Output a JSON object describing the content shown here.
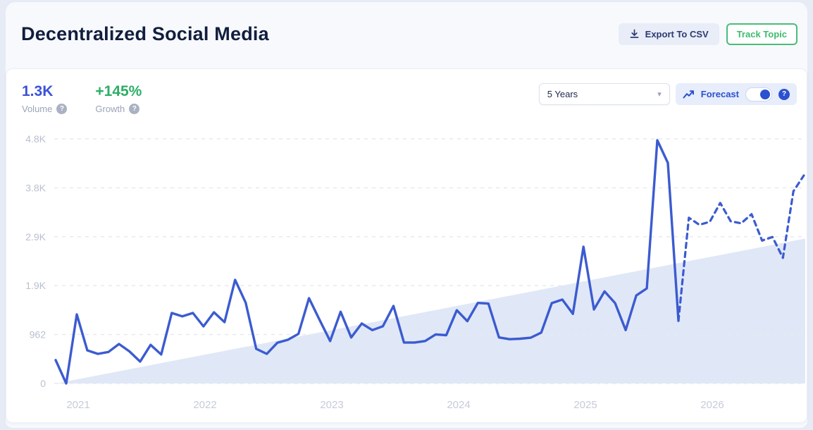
{
  "header": {
    "title": "Decentralized Social Media",
    "export_button": "Export To CSV",
    "track_button": "Track Topic"
  },
  "stats": {
    "volume_value": "1.3K",
    "volume_label": "Volume",
    "growth_value": "+145%",
    "growth_label": "Growth"
  },
  "controls": {
    "range_selected": "5 Years",
    "forecast_label": "Forecast",
    "forecast_toggle_state": "on"
  },
  "icons": {
    "caret": "▾",
    "help": "?"
  },
  "colors": {
    "accent_blue": "#2b50d0",
    "line_blue": "#3c5bd0",
    "green": "#2cae66",
    "trend_fill": "#e0e8f7",
    "grid": "#e5e8f0",
    "y_tick_text": "#b9c0cf",
    "x_tick_text": "#c6cbd9"
  },
  "chart_data": {
    "type": "line",
    "title": "Decentralized Social Media search volume, 5 years with forecast",
    "x_unit": "month",
    "x_start": "2020-11",
    "x_tick_labels": [
      "2021",
      "2022",
      "2023",
      "2024",
      "2025",
      "2026"
    ],
    "y_tick_labels": [
      "0",
      "962",
      "1.9K",
      "2.9K",
      "3.8K",
      "4.8K"
    ],
    "y_tick_values": [
      0,
      962,
      1924,
      2886,
      3848,
      4810
    ],
    "y_max": 4810,
    "grid": "dashed-horizontal",
    "legend": "none",
    "series": [
      {
        "name": "volume",
        "style": "solid",
        "values": [
          460,
          0,
          1358,
          651,
          582,
          620,
          776,
          630,
          430,
          760,
          570,
          1386,
          1320,
          1386,
          1123,
          1400,
          1206,
          2037,
          1590,
          680,
          582,
          800,
          860,
          975,
          1677,
          1250,
          835,
          1410,
          905,
          1180,
          1050,
          1125,
          1525,
          805,
          805,
          835,
          965,
          950,
          1440,
          1225,
          1585,
          1570,
          905,
          870,
          880,
          900,
          1000,
          1580,
          1650,
          1370,
          2689,
          1455,
          1810,
          1580,
          1050,
          1730,
          1870,
          4782,
          4338,
          1234
        ]
      },
      {
        "name": "forecast",
        "style": "dashed",
        "values": [
          1234,
          3260,
          3120,
          3180,
          3550,
          3190,
          3150,
          3330,
          2810,
          2880,
          2470,
          3780,
          4090
        ]
      }
    ],
    "trend_area": {
      "start_value": 0,
      "end_value": 2850
    }
  }
}
